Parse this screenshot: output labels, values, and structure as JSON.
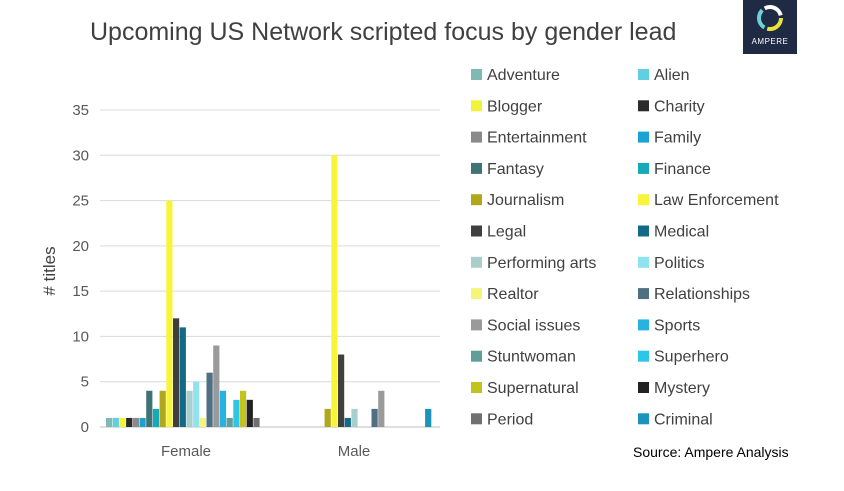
{
  "chart_data": {
    "type": "bar",
    "title": "Upcoming US Network scripted focus by gender lead",
    "ylabel": "# titles",
    "xlabel": "",
    "ylim": [
      0,
      35
    ],
    "yticks": [
      "0",
      "5",
      "10",
      "15",
      "20",
      "25",
      "30",
      "35"
    ],
    "grid": true,
    "legend_position": "right",
    "categories": [
      "Female",
      "Male"
    ],
    "series": [
      {
        "name": "Adventure",
        "color": "#7fb9b3",
        "values": [
          1,
          0
        ]
      },
      {
        "name": "Alien",
        "color": "#5fd0e0",
        "values": [
          1,
          0
        ]
      },
      {
        "name": "Blogger",
        "color": "#f2f23a",
        "values": [
          1,
          0
        ]
      },
      {
        "name": "Charity",
        "color": "#2b2b2b",
        "values": [
          1,
          0
        ]
      },
      {
        "name": "Entertainment",
        "color": "#8a8a8a",
        "values": [
          1,
          0
        ]
      },
      {
        "name": "Family",
        "color": "#1aa2d4",
        "values": [
          1,
          0
        ]
      },
      {
        "name": "Fantasy",
        "color": "#3f7374",
        "values": [
          4,
          0
        ]
      },
      {
        "name": "Finance",
        "color": "#18a9b8",
        "values": [
          2,
          0
        ]
      },
      {
        "name": "Journalism",
        "color": "#b0a81a",
        "values": [
          4,
          2
        ]
      },
      {
        "name": "Law Enforcement",
        "color": "#f7f43a",
        "values": [
          25,
          30
        ]
      },
      {
        "name": "Legal",
        "color": "#3f3f3f",
        "values": [
          12,
          8
        ]
      },
      {
        "name": "Medical",
        "color": "#136a86",
        "values": [
          11,
          1
        ]
      },
      {
        "name": "Performing arts",
        "color": "#a9cfcc",
        "values": [
          4,
          2
        ]
      },
      {
        "name": "Politics",
        "color": "#8fe3ef",
        "values": [
          5,
          0
        ]
      },
      {
        "name": "Realtor",
        "color": "#f5f57a",
        "values": [
          1,
          0
        ]
      },
      {
        "name": "Relationships",
        "color": "#4f6f82",
        "values": [
          6,
          2
        ]
      },
      {
        "name": "Social issues",
        "color": "#9a9a9a",
        "values": [
          9,
          4
        ]
      },
      {
        "name": "Sports",
        "color": "#27b2e2",
        "values": [
          4,
          0
        ]
      },
      {
        "name": "Stuntwoman",
        "color": "#5f9e99",
        "values": [
          1,
          0
        ]
      },
      {
        "name": "Superhero",
        "color": "#2cc6e8",
        "values": [
          3,
          0
        ]
      },
      {
        "name": "Supernatural",
        "color": "#c4c21e",
        "values": [
          4,
          0
        ]
      },
      {
        "name": "Mystery",
        "color": "#232323",
        "values": [
          3,
          0
        ]
      },
      {
        "name": "Period",
        "color": "#707070",
        "values": [
          1,
          0
        ]
      },
      {
        "name": "Criminal",
        "color": "#1b93bb",
        "values": [
          0,
          2
        ]
      }
    ]
  },
  "source": "Source:  Ampere Analysis",
  "logo": {
    "text": "AMPERE"
  }
}
